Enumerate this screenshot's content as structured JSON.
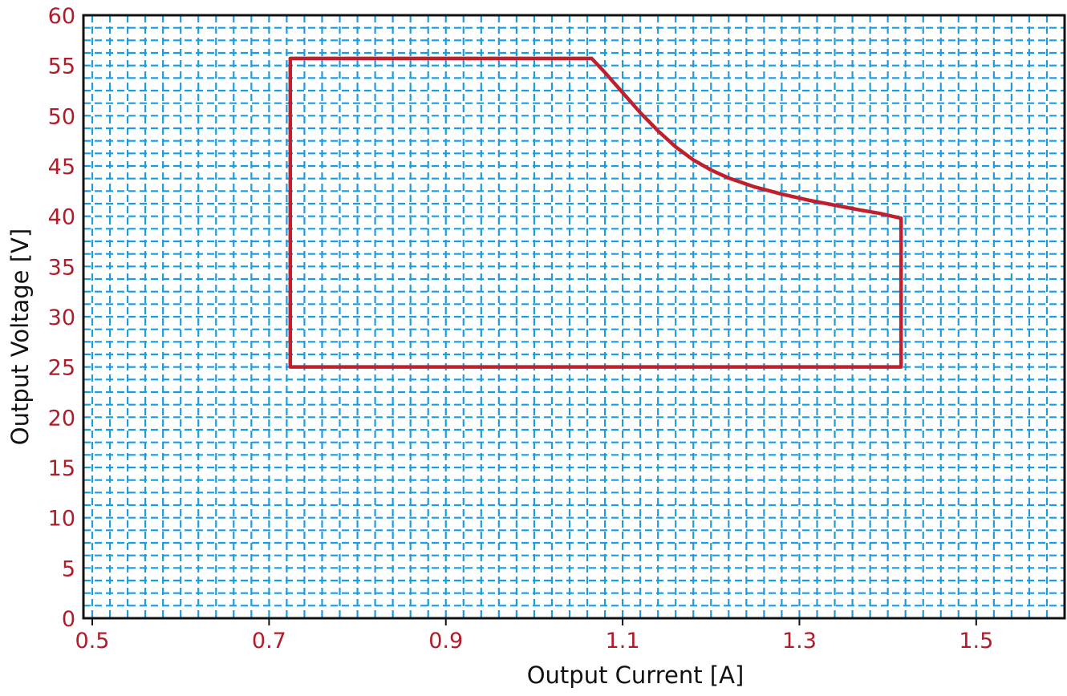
{
  "chart_data": {
    "type": "line",
    "title": "",
    "xlabel": "Output Current [A]",
    "ylabel": "Output Voltage [V]",
    "xlim": [
      0.49,
      1.6
    ],
    "ylim": [
      0,
      60
    ],
    "x_ticks": [
      0.5,
      0.7,
      0.9,
      1.1,
      1.3,
      1.5
    ],
    "x_tick_labels": [
      "0.5",
      "0.7",
      "0.9",
      "1.1",
      "1.3",
      "1.5"
    ],
    "y_ticks": [
      0,
      5,
      10,
      15,
      20,
      25,
      30,
      35,
      40,
      45,
      50,
      55,
      60
    ],
    "y_tick_labels": [
      "0",
      "5",
      "10",
      "15",
      "20",
      "25",
      "30",
      "35",
      "40",
      "45",
      "50",
      "55",
      "60"
    ],
    "grid": true,
    "grid_style": "dashed",
    "legend": "none",
    "series": [
      {
        "x": [
          0.724,
          1.065,
          1.08,
          1.1,
          1.12,
          1.14,
          1.16,
          1.18,
          1.2,
          1.22,
          1.25,
          1.28,
          1.31,
          1.34,
          1.37,
          1.39,
          1.415,
          1.415,
          0.724,
          0.724
        ],
        "y": [
          55.7,
          55.7,
          54.3,
          52.3,
          50.3,
          48.5,
          46.9,
          45.6,
          44.6,
          43.8,
          42.9,
          42.2,
          41.6,
          41.1,
          40.6,
          40.3,
          39.8,
          25.0,
          25.0,
          55.7
        ]
      }
    ],
    "colors": {
      "series": "#c0202e",
      "grid": "#1c9ce0",
      "tick_labels": "#b01c2a",
      "axis": "#111111",
      "background": "#ffffff"
    }
  }
}
